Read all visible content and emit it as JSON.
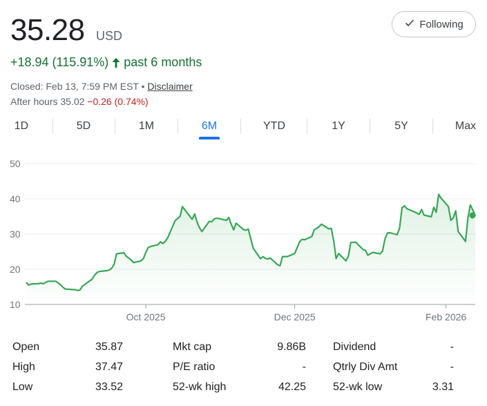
{
  "quote": {
    "price": "35.28",
    "currency": "USD",
    "change": "+18.94 (115.91%)",
    "period": "past 6 months",
    "closed": "Closed: Feb 13, 7:59 PM EST •",
    "disclaimer": "Disclaimer",
    "after_hours_label": "After hours 35.02",
    "after_hours_change": "−0.26 (0.74%)",
    "up_color": "#137333",
    "down_color": "#c5221f"
  },
  "follow_button": {
    "label": "Following",
    "icon": "check-icon"
  },
  "tabs": [
    {
      "label": "1D",
      "active": false
    },
    {
      "label": "5D",
      "active": false
    },
    {
      "label": "1M",
      "active": false
    },
    {
      "label": "6M",
      "active": true
    },
    {
      "label": "YTD",
      "active": false
    },
    {
      "label": "1Y",
      "active": false
    },
    {
      "label": "5Y",
      "active": false
    },
    {
      "label": "Max",
      "active": false
    }
  ],
  "chart_data": {
    "type": "area",
    "ylim": [
      10,
      50
    ],
    "yticks": [
      10,
      20,
      30,
      40,
      50
    ],
    "xticks": [
      {
        "label": "Oct 2025",
        "date": "2025-10-01"
      },
      {
        "label": "Dec 2025",
        "date": "2025-12-01"
      },
      {
        "label": "Feb 2026",
        "date": "2026-02-01"
      }
    ],
    "x_range": [
      "2025-08-13",
      "2026-02-13"
    ],
    "line_color": "#34a853",
    "grid": true,
    "series": [
      {
        "points": [
          [
            "2025-08-13",
            16.3
          ],
          [
            "2025-08-14",
            15.5
          ],
          [
            "2025-08-15",
            15.8
          ],
          [
            "2025-08-18",
            15.9
          ],
          [
            "2025-08-19",
            16.1
          ],
          [
            "2025-08-20",
            15.9
          ],
          [
            "2025-08-21",
            16.3
          ],
          [
            "2025-08-22",
            16.6
          ],
          [
            "2025-08-25",
            16.6
          ],
          [
            "2025-08-26",
            16.2
          ],
          [
            "2025-08-27",
            15.6
          ],
          [
            "2025-08-28",
            14.9
          ],
          [
            "2025-08-29",
            14.4
          ],
          [
            "2025-09-02",
            14.2
          ],
          [
            "2025-09-03",
            14.0
          ],
          [
            "2025-09-04",
            14.1
          ],
          [
            "2025-09-05",
            15.2
          ],
          [
            "2025-09-08",
            16.7
          ],
          [
            "2025-09-09",
            17.2
          ],
          [
            "2025-09-10",
            18.3
          ],
          [
            "2025-09-11",
            19.1
          ],
          [
            "2025-09-12",
            19.4
          ],
          [
            "2025-09-15",
            19.6
          ],
          [
            "2025-09-16",
            19.8
          ],
          [
            "2025-09-17",
            20.3
          ],
          [
            "2025-09-18",
            21.4
          ],
          [
            "2025-09-19",
            24.4
          ],
          [
            "2025-09-22",
            24.7
          ],
          [
            "2025-09-23",
            23.7
          ],
          [
            "2025-09-24",
            23.2
          ],
          [
            "2025-09-25",
            22.6
          ],
          [
            "2025-09-26",
            21.9
          ],
          [
            "2025-09-29",
            22.4
          ],
          [
            "2025-09-30",
            23.0
          ],
          [
            "2025-10-01",
            24.8
          ],
          [
            "2025-10-02",
            26.2
          ],
          [
            "2025-10-03",
            26.5
          ],
          [
            "2025-10-06",
            27.0
          ],
          [
            "2025-10-07",
            27.8
          ],
          [
            "2025-10-08",
            27.3
          ],
          [
            "2025-10-09",
            28.0
          ],
          [
            "2025-10-10",
            29.0
          ],
          [
            "2025-10-13",
            33.8
          ],
          [
            "2025-10-14",
            34.4
          ],
          [
            "2025-10-15",
            35.0
          ],
          [
            "2025-10-16",
            37.8
          ],
          [
            "2025-10-17",
            36.9
          ],
          [
            "2025-10-20",
            34.2
          ],
          [
            "2025-10-21",
            35.7
          ],
          [
            "2025-10-22",
            33.4
          ],
          [
            "2025-10-23",
            31.8
          ],
          [
            "2025-10-24",
            30.7
          ],
          [
            "2025-10-27",
            33.6
          ],
          [
            "2025-10-28",
            33.5
          ],
          [
            "2025-10-29",
            34.3
          ],
          [
            "2025-10-30",
            34.5
          ],
          [
            "2025-10-31",
            34.4
          ],
          [
            "2025-11-03",
            33.9
          ],
          [
            "2025-11-04",
            34.7
          ],
          [
            "2025-11-05",
            32.8
          ],
          [
            "2025-11-06",
            31.2
          ],
          [
            "2025-11-07",
            33.1
          ],
          [
            "2025-11-10",
            31.3
          ],
          [
            "2025-11-11",
            31.1
          ],
          [
            "2025-11-12",
            31.4
          ],
          [
            "2025-11-13",
            28.7
          ],
          [
            "2025-11-14",
            26.0
          ],
          [
            "2025-11-17",
            23.0
          ],
          [
            "2025-11-18",
            23.6
          ],
          [
            "2025-11-19",
            23.1
          ],
          [
            "2025-11-20",
            22.9
          ],
          [
            "2025-11-21",
            23.2
          ],
          [
            "2025-11-24",
            21.3
          ],
          [
            "2025-11-25",
            21.0
          ],
          [
            "2025-11-26",
            23.6
          ],
          [
            "2025-11-28",
            23.6
          ],
          [
            "2025-12-01",
            24.5
          ],
          [
            "2025-12-02",
            26.1
          ],
          [
            "2025-12-03",
            27.8
          ],
          [
            "2025-12-04",
            28.5
          ],
          [
            "2025-12-05",
            28.4
          ],
          [
            "2025-12-08",
            29.3
          ],
          [
            "2025-12-09",
            31.2
          ],
          [
            "2025-12-10",
            31.6
          ],
          [
            "2025-12-11",
            32.1
          ],
          [
            "2025-12-12",
            32.8
          ],
          [
            "2025-12-15",
            31.5
          ],
          [
            "2025-12-16",
            31.6
          ],
          [
            "2025-12-17",
            28.1
          ],
          [
            "2025-12-18",
            23.0
          ],
          [
            "2025-12-19",
            24.5
          ],
          [
            "2025-12-22",
            22.4
          ],
          [
            "2025-12-23",
            23.7
          ],
          [
            "2025-12-24",
            27.6
          ],
          [
            "2025-12-26",
            27.7
          ],
          [
            "2025-12-29",
            25.6
          ],
          [
            "2025-12-30",
            25.4
          ],
          [
            "2025-12-31",
            24.0
          ],
          [
            "2026-01-02",
            24.8
          ],
          [
            "2026-01-05",
            24.4
          ],
          [
            "2026-01-06",
            25.2
          ],
          [
            "2026-01-07",
            28.6
          ],
          [
            "2026-01-08",
            30.3
          ],
          [
            "2026-01-09",
            30.4
          ],
          [
            "2026-01-12",
            29.8
          ],
          [
            "2026-01-13",
            31.8
          ],
          [
            "2026-01-14",
            37.5
          ],
          [
            "2026-01-15",
            38.0
          ],
          [
            "2026-01-16",
            37.2
          ],
          [
            "2026-01-20",
            36.0
          ],
          [
            "2026-01-21",
            35.6
          ],
          [
            "2026-01-22",
            37.0
          ],
          [
            "2026-01-23",
            35.4
          ],
          [
            "2026-01-26",
            34.9
          ],
          [
            "2026-01-27",
            37.6
          ],
          [
            "2026-01-28",
            36.2
          ],
          [
            "2026-01-29",
            41.3
          ],
          [
            "2026-01-30",
            40.2
          ],
          [
            "2026-02-02",
            37.8
          ],
          [
            "2026-02-03",
            33.9
          ],
          [
            "2026-02-04",
            34.6
          ],
          [
            "2026-02-05",
            36.6
          ],
          [
            "2026-02-06",
            30.7
          ],
          [
            "2026-02-09",
            27.9
          ],
          [
            "2026-02-10",
            34.6
          ],
          [
            "2026-02-11",
            38.3
          ],
          [
            "2026-02-12",
            36.8
          ],
          [
            "2026-02-13",
            35.3
          ]
        ]
      }
    ]
  },
  "stats": [
    [
      {
        "label": "Open",
        "value": "35.87"
      },
      {
        "label": "Mkt cap",
        "value": "9.86B"
      },
      {
        "label": "Dividend",
        "value": "-"
      }
    ],
    [
      {
        "label": "High",
        "value": "37.47"
      },
      {
        "label": "P/E ratio",
        "value": "-"
      },
      {
        "label": "Qtrly Div Amt",
        "value": "-"
      }
    ],
    [
      {
        "label": "Low",
        "value": "33.52"
      },
      {
        "label": "52-wk high",
        "value": "42.25"
      },
      {
        "label": "52-wk low",
        "value": "3.31"
      }
    ]
  ]
}
